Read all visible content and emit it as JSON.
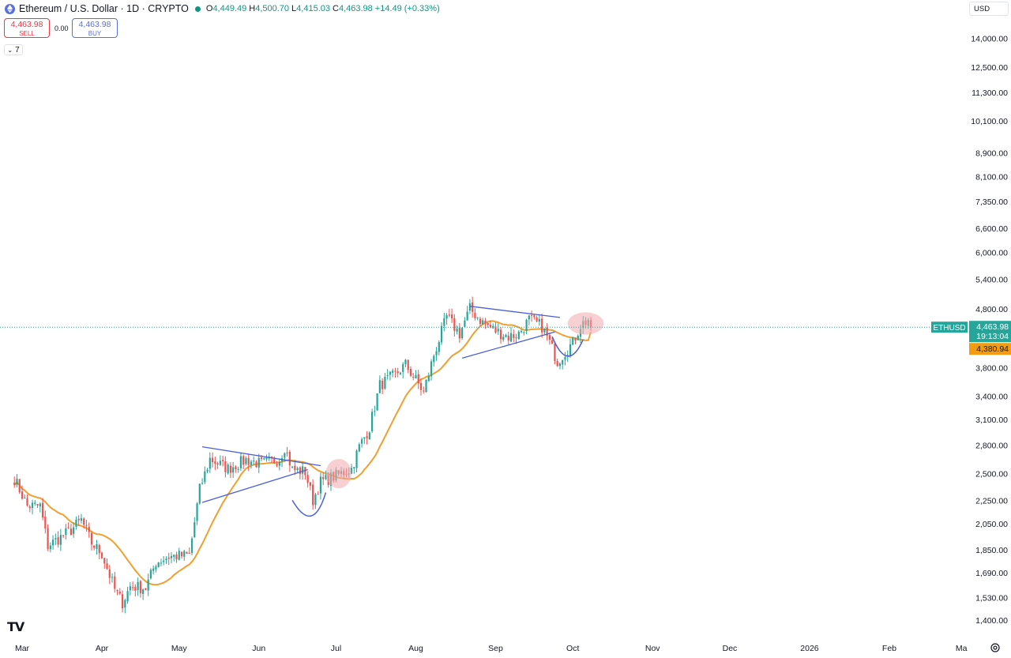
{
  "header": {
    "title": "Ethereum / U.S. Dollar · 1D · CRYPTO",
    "ohlc": [
      {
        "k": "O",
        "v": "4,449.49"
      },
      {
        "k": "H",
        "v": "4,500.70"
      },
      {
        "k": "L",
        "v": "4,415.03"
      },
      {
        "k": "C",
        "v": "4,463.98"
      },
      {
        "k": "",
        "v": "+14.49 (+0.33%)"
      }
    ],
    "sell_price": "4,463.98",
    "sell_label": "SELL",
    "spread": "0.00",
    "buy_price": "4,463.98",
    "buy_label": "BUY",
    "indicators_count": "7",
    "currency": "USD"
  },
  "price_tags": {
    "symbol": "ETHUSD",
    "last": "4,463.98",
    "countdown": "19:13:04",
    "ma_value": "4,380.94"
  },
  "colors": {
    "up": "#26a69a",
    "down": "#ef5350",
    "ma": "#f0a02f",
    "trendline": "#4a5fd6",
    "highlight": "#f2a8ad",
    "ma_tag": "#f39c12",
    "price_tag": "#26a69a"
  },
  "chart_data": {
    "type": "candlestick",
    "y_scale": "log",
    "y_ticks": [
      "14,000.00",
      "12,500.00",
      "11,300.00",
      "10,100.00",
      "8,900.00",
      "8,100.00",
      "7,350.00",
      "6,600.00",
      "6,000.00",
      "5,400.00",
      "4,800.00",
      "3,800.00",
      "3,400.00",
      "3,100.00",
      "2,800.00",
      "2,500.00",
      "2,250.00",
      "2,050.00",
      "1,850.00",
      "1,690.00",
      "1,530.00",
      "1,400.00"
    ],
    "y_tick_values": [
      14000,
      12500,
      11300,
      10100,
      8900,
      8100,
      7350,
      6600,
      6000,
      5400,
      4800,
      3800,
      3400,
      3100,
      2800,
      2500,
      2250,
      2050,
      1850,
      1690,
      1530,
      1400
    ],
    "x_ticks": [
      "Mar",
      "Apr",
      "May",
      "Jun",
      "Jul",
      "Aug",
      "Sep",
      "Oct",
      "Nov",
      "Dec",
      "2026",
      "Feb",
      "Ma"
    ],
    "x_tick_dates": [
      "2025-03-01",
      "2025-04-01",
      "2025-05-01",
      "2025-06-01",
      "2025-07-01",
      "2025-08-01",
      "2025-09-01",
      "2025-10-01",
      "2025-11-01",
      "2025-12-01",
      "2026-01-01",
      "2026-02-01",
      "2026-03-01"
    ],
    "series_start": "2025-02-26",
    "anchors": [
      [
        "2025-02-26",
        2450
      ],
      [
        "2025-03-03",
        2200
      ],
      [
        "2025-03-08",
        2200
      ],
      [
        "2025-03-11",
        1880
      ],
      [
        "2025-03-15",
        1930
      ],
      [
        "2025-03-20",
        2000
      ],
      [
        "2025-03-24",
        2080
      ],
      [
        "2025-03-28",
        1900
      ],
      [
        "2025-04-01",
        1820
      ],
      [
        "2025-04-06",
        1580
      ],
      [
        "2025-04-09",
        1500
      ],
      [
        "2025-04-12",
        1600
      ],
      [
        "2025-04-18",
        1590
      ],
      [
        "2025-04-22",
        1760
      ],
      [
        "2025-04-27",
        1800
      ],
      [
        "2025-05-05",
        1810
      ],
      [
        "2025-05-09",
        2350
      ],
      [
        "2025-05-13",
        2650
      ],
      [
        "2025-05-20",
        2550
      ],
      [
        "2025-05-27",
        2640
      ],
      [
        "2025-06-02",
        2600
      ],
      [
        "2025-06-09",
        2650
      ],
      [
        "2025-06-11",
        2780
      ],
      [
        "2025-06-14",
        2540
      ],
      [
        "2025-06-19",
        2520
      ],
      [
        "2025-06-22",
        2250
      ],
      [
        "2025-06-25",
        2420
      ],
      [
        "2025-07-01",
        2480
      ],
      [
        "2025-07-07",
        2550
      ],
      [
        "2025-07-10",
        2780
      ],
      [
        "2025-07-14",
        3000
      ],
      [
        "2025-07-18",
        3550
      ],
      [
        "2025-07-24",
        3700
      ],
      [
        "2025-07-28",
        3850
      ],
      [
        "2025-08-01",
        3620
      ],
      [
        "2025-08-04",
        3450
      ],
      [
        "2025-08-08",
        4000
      ],
      [
        "2025-08-13",
        4650
      ],
      [
        "2025-08-18",
        4350
      ],
      [
        "2025-08-22",
        4800
      ],
      [
        "2025-08-27",
        4550
      ],
      [
        "2025-09-01",
        4400
      ],
      [
        "2025-09-06",
        4300
      ],
      [
        "2025-09-10",
        4350
      ],
      [
        "2025-09-14",
        4600
      ],
      [
        "2025-09-19",
        4480
      ],
      [
        "2025-09-22",
        4200
      ],
      [
        "2025-09-25",
        3900
      ],
      [
        "2025-09-28",
        4050
      ],
      [
        "2025-10-01",
        4200
      ],
      [
        "2025-10-04",
        4500
      ],
      [
        "2025-10-07",
        4600
      ],
      [
        "2025-10-08",
        4463.98
      ]
    ],
    "ma_period": 20,
    "last_close": 4463.98,
    "ma_last": 4380.94
  },
  "annotations": {
    "trendlines": [
      [
        [
          "2025-05-10",
          2780
        ],
        [
          "2025-06-25",
          2580
        ]
      ],
      [
        [
          "2025-05-10",
          2230
        ],
        [
          "2025-06-20",
          2540
        ]
      ],
      [
        [
          "2025-08-22",
          4850
        ],
        [
          "2025-09-26",
          4640
        ]
      ],
      [
        [
          "2025-08-19",
          3950
        ],
        [
          "2025-09-24",
          4380
        ]
      ]
    ],
    "arcs": [
      [
        [
          "2025-06-14",
          2250
        ],
        [
          "2025-06-18",
          2150
        ],
        [
          "2025-06-22",
          2070
        ],
        [
          "2025-06-25",
          2200
        ],
        [
          "2025-06-27",
          2320
        ]
      ],
      [
        [
          "2025-09-23",
          4300
        ],
        [
          "2025-09-26",
          4050
        ],
        [
          "2025-09-29",
          3920
        ],
        [
          "2025-10-02",
          4100
        ],
        [
          "2025-10-05",
          4250
        ]
      ]
    ],
    "highlights": [
      {
        "date": "2025-07-02",
        "price": 2500,
        "rx_days": 5,
        "ry_ratio": 1.06
      },
      {
        "date": "2025-10-06",
        "price": 4530,
        "rx_days": 7,
        "ry_ratio": 1.045
      }
    ]
  }
}
